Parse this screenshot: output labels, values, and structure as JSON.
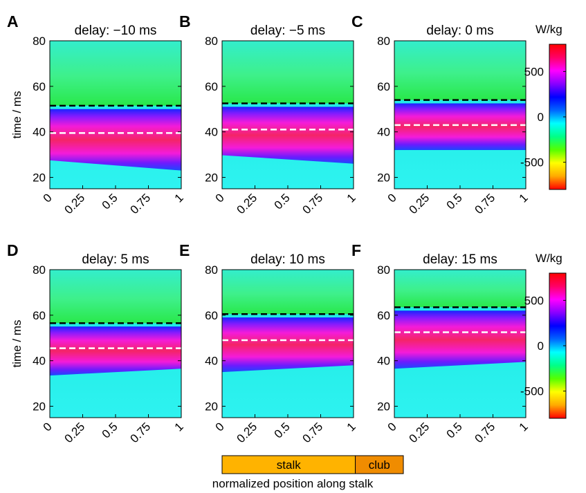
{
  "colorbar": {
    "unit": "W/kg",
    "range": [
      -800,
      800
    ],
    "ticks": [
      "500",
      "0",
      "-500"
    ],
    "tick_values": [
      500,
      0,
      -500
    ],
    "colormap": "hsv",
    "colors": [
      "#ff0000",
      "#ffaa00",
      "#ffff00",
      "#55ff00",
      "#00ff88",
      "#00ffff",
      "#0066ff",
      "#0000ff",
      "#8800ff",
      "#ff00ff",
      "#ff0066",
      "#ff0000"
    ]
  },
  "colors": {
    "high_marker_line": "#000000",
    "mid_marker_line": "#ffffff",
    "stalk_bar": "#ffb300",
    "club_bar": "#f08c00"
  },
  "axes": {
    "ylabel": "time / ms",
    "xlabel": "normalized position along stalk",
    "yticks": [
      "20",
      "40",
      "60",
      "80"
    ],
    "ytick_values": [
      20,
      40,
      60,
      80
    ],
    "xticks": [
      "0",
      "0.25",
      "0.5",
      "0.75",
      "1"
    ],
    "xtick_values": [
      0,
      0.25,
      0.5,
      0.75,
      1
    ],
    "ylim": [
      15,
      80
    ],
    "xlim": [
      0,
      1
    ]
  },
  "legend_bar": {
    "stalk_label": "stalk",
    "club_label": "club",
    "stalk_fraction": 0.735
  },
  "chart_data": [
    {
      "type": "heatmap",
      "letter": "A",
      "title": "delay: −10 ms",
      "delay_ms": -10,
      "black_line_ms": 51.5,
      "white_line_ms": 39.5
    },
    {
      "type": "heatmap",
      "letter": "B",
      "title": "delay: −5 ms",
      "delay_ms": -5,
      "black_line_ms": 52.5,
      "white_line_ms": 41
    },
    {
      "type": "heatmap",
      "letter": "C",
      "title": "delay: 0 ms",
      "delay_ms": 0,
      "black_line_ms": 54,
      "white_line_ms": 43
    },
    {
      "type": "heatmap",
      "letter": "D",
      "title": "delay: 5 ms",
      "delay_ms": 5,
      "black_line_ms": 56.5,
      "white_line_ms": 45.5
    },
    {
      "type": "heatmap",
      "letter": "E",
      "title": "delay: 10 ms",
      "delay_ms": 10,
      "black_line_ms": 60.5,
      "white_line_ms": 49
    },
    {
      "type": "heatmap",
      "letter": "F",
      "title": "delay: 15 ms",
      "delay_ms": 15,
      "black_line_ms": 63.5,
      "white_line_ms": 52.5
    }
  ]
}
